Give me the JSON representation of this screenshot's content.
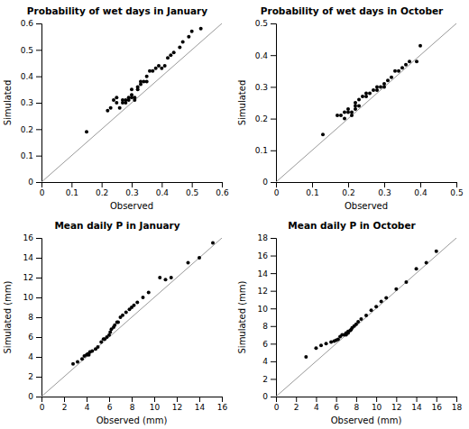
{
  "chart_data": [
    {
      "type": "scatter",
      "title": "Probability of wet days in January",
      "xlabel": "Observed",
      "ylabel": "Simulated",
      "x": [
        0.15,
        0.22,
        0.23,
        0.24,
        0.25,
        0.25,
        0.26,
        0.27,
        0.27,
        0.28,
        0.28,
        0.29,
        0.29,
        0.3,
        0.3,
        0.3,
        0.31,
        0.31,
        0.32,
        0.32,
        0.33,
        0.33,
        0.34,
        0.35,
        0.35,
        0.36,
        0.37,
        0.38,
        0.39,
        0.4,
        0.41,
        0.42,
        0.43,
        0.44,
        0.46,
        0.47,
        0.49,
        0.5,
        0.53
      ],
      "values": [
        0.19,
        0.27,
        0.28,
        0.31,
        0.3,
        0.32,
        0.28,
        0.3,
        0.31,
        0.3,
        0.31,
        0.31,
        0.32,
        0.32,
        0.33,
        0.35,
        0.31,
        0.32,
        0.36,
        0.35,
        0.37,
        0.38,
        0.38,
        0.38,
        0.4,
        0.42,
        0.42,
        0.43,
        0.44,
        0.43,
        0.44,
        0.47,
        0.48,
        0.49,
        0.51,
        0.53,
        0.55,
        0.57,
        0.58
      ],
      "color": "#000000",
      "xlim": [
        0,
        0.6
      ],
      "ylim": [
        0,
        0.6
      ],
      "xticks": [
        0,
        0.1,
        0.2,
        0.3,
        0.4,
        0.5,
        0.6
      ],
      "yticks": [
        0,
        0.1,
        0.2,
        0.3,
        0.4,
        0.5,
        0.6
      ],
      "grid": false
    },
    {
      "type": "scatter",
      "title": "Probability of wet days in October",
      "xlabel": "Observed",
      "ylabel": "Simulated",
      "x": [
        0.13,
        0.17,
        0.18,
        0.19,
        0.19,
        0.2,
        0.2,
        0.21,
        0.21,
        0.22,
        0.22,
        0.22,
        0.23,
        0.23,
        0.24,
        0.25,
        0.25,
        0.26,
        0.27,
        0.28,
        0.28,
        0.29,
        0.3,
        0.3,
        0.31,
        0.32,
        0.33,
        0.34,
        0.35,
        0.36,
        0.37,
        0.39,
        0.4
      ],
      "values": [
        0.15,
        0.21,
        0.21,
        0.22,
        0.2,
        0.22,
        0.23,
        0.22,
        0.21,
        0.23,
        0.24,
        0.25,
        0.24,
        0.26,
        0.27,
        0.27,
        0.28,
        0.28,
        0.29,
        0.3,
        0.29,
        0.3,
        0.3,
        0.31,
        0.32,
        0.33,
        0.35,
        0.35,
        0.36,
        0.37,
        0.38,
        0.38,
        0.43
      ],
      "color": "#000000",
      "xlim": [
        0,
        0.5
      ],
      "ylim": [
        0,
        0.5
      ],
      "xticks": [
        0,
        0.1,
        0.2,
        0.3,
        0.4,
        0.5
      ],
      "yticks": [
        0,
        0.1,
        0.2,
        0.3,
        0.4,
        0.5
      ],
      "grid": false
    },
    {
      "type": "scatter",
      "title": "Mean daily P in January",
      "xlabel": "Observed (mm)",
      "ylabel": "Simulated (mm)",
      "x": [
        2.8,
        3.2,
        3.6,
        3.8,
        4.0,
        4.1,
        4.2,
        4.3,
        4.5,
        4.8,
        5.0,
        5.3,
        5.5,
        5.6,
        5.8,
        6.0,
        6.1,
        6.2,
        6.4,
        6.5,
        6.7,
        6.8,
        7.0,
        7.2,
        7.5,
        7.8,
        8.0,
        8.2,
        8.5,
        9.0,
        9.5,
        10.5,
        11.0,
        11.5,
        13.0,
        14.0,
        15.2
      ],
      "values": [
        3.3,
        3.5,
        3.8,
        4.1,
        4.2,
        4.3,
        4.2,
        4.5,
        4.6,
        4.8,
        5.0,
        5.5,
        5.8,
        5.8,
        6.0,
        6.2,
        6.5,
        6.8,
        7.0,
        7.2,
        7.5,
        7.5,
        8.0,
        8.2,
        8.5,
        8.8,
        9.0,
        9.2,
        9.5,
        10.0,
        10.5,
        12.0,
        11.8,
        12.0,
        13.5,
        14.0,
        15.5
      ],
      "color": "#000000",
      "xlim": [
        0,
        16
      ],
      "ylim": [
        0,
        16
      ],
      "xticks": [
        0,
        2,
        4,
        6,
        8,
        10,
        12,
        14,
        16
      ],
      "yticks": [
        0,
        2,
        4,
        6,
        8,
        10,
        12,
        14,
        16
      ],
      "grid": false
    },
    {
      "type": "scatter",
      "title": "Mean daily P in October",
      "xlabel": "Observed (mm)",
      "ylabel": "Simulated (mm)",
      "x": [
        3.0,
        4.0,
        4.5,
        5.0,
        5.5,
        5.8,
        6.0,
        6.2,
        6.4,
        6.6,
        6.8,
        7.0,
        7.0,
        7.2,
        7.2,
        7.4,
        7.5,
        7.6,
        7.8,
        8.0,
        8.2,
        8.5,
        9.0,
        9.5,
        10.0,
        10.5,
        11.0,
        12.0,
        13.0,
        14.0,
        15.0,
        16.0
      ],
      "values": [
        4.5,
        5.5,
        5.8,
        6.0,
        6.2,
        6.3,
        6.4,
        6.5,
        6.8,
        7.0,
        7.0,
        7.0,
        7.2,
        7.2,
        7.4,
        7.5,
        7.6,
        7.8,
        8.0,
        8.2,
        8.5,
        8.8,
        9.2,
        9.8,
        10.2,
        10.8,
        11.2,
        12.2,
        13.0,
        14.5,
        15.2,
        16.5
      ],
      "color": "#000000",
      "xlim": [
        0,
        18
      ],
      "ylim": [
        0,
        18
      ],
      "xticks": [
        0,
        2,
        4,
        6,
        8,
        10,
        12,
        14,
        16,
        18
      ],
      "yticks": [
        0,
        2,
        4,
        6,
        8,
        10,
        12,
        14,
        16,
        18
      ],
      "grid": false
    }
  ]
}
